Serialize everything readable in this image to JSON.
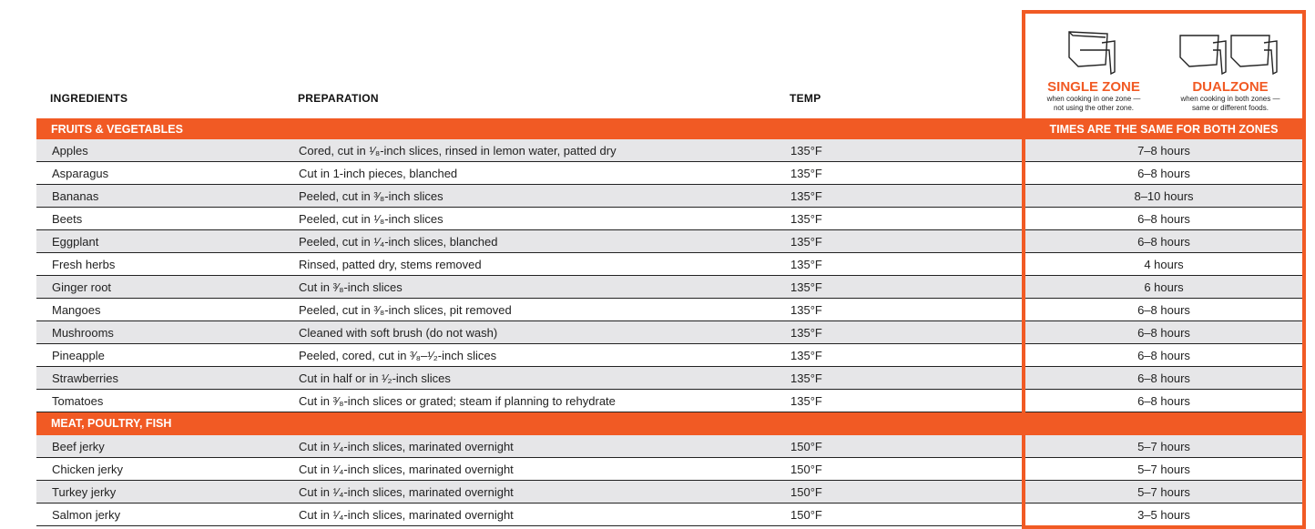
{
  "headers": {
    "ingredients": "INGREDIENTS",
    "preparation": "PREPARATION",
    "temp": "TEMP"
  },
  "zones": {
    "single": {
      "title": "SINGLE ZONE",
      "line1": "when cooking in one zone —",
      "line2": "not using the other zone.",
      "icon": "single-basket-icon"
    },
    "dual": {
      "title": "DUALZONE",
      "line1": "when cooking in both zones —",
      "line2": "same or different foods.",
      "icon": "dual-basket-icon"
    }
  },
  "accent": "#f15a24",
  "times_note": "TIMES ARE THE SAME FOR BOTH ZONES",
  "sections": [
    {
      "title": "FRUITS & VEGETABLES",
      "rows": [
        {
          "ingredient": "Apples",
          "prep": "Cored, cut in ¹⁄₈-inch slices, rinsed in lemon water, patted dry",
          "temp": "135°F",
          "time": "7–8 hours"
        },
        {
          "ingredient": "Asparagus",
          "prep": "Cut in 1-inch pieces, blanched",
          "temp": "135°F",
          "time": "6–8 hours"
        },
        {
          "ingredient": "Bananas",
          "prep": "Peeled, cut in ³⁄₈-inch slices",
          "temp": "135°F",
          "time": "8–10 hours"
        },
        {
          "ingredient": "Beets",
          "prep": "Peeled, cut in ¹⁄₈-inch slices",
          "temp": "135°F",
          "time": "6–8 hours"
        },
        {
          "ingredient": "Eggplant",
          "prep": "Peeled, cut in ¹⁄₄-inch slices, blanched",
          "temp": "135°F",
          "time": "6–8 hours"
        },
        {
          "ingredient": "Fresh herbs",
          "prep": "Rinsed, patted dry, stems removed",
          "temp": "135°F",
          "time": "4 hours"
        },
        {
          "ingredient": "Ginger root",
          "prep": "Cut in ³⁄₈-inch slices",
          "temp": "135°F",
          "time": "6 hours"
        },
        {
          "ingredient": "Mangoes",
          "prep": "Peeled, cut in ³⁄₈-inch slices, pit removed",
          "temp": "135°F",
          "time": "6–8 hours"
        },
        {
          "ingredient": "Mushrooms",
          "prep": "Cleaned with soft brush (do not wash)",
          "temp": "135°F",
          "time": "6–8 hours"
        },
        {
          "ingredient": "Pineapple",
          "prep": "Peeled, cored, cut in ³⁄₈–¹⁄₂-inch slices",
          "temp": "135°F",
          "time": "6–8 hours"
        },
        {
          "ingredient": "Strawberries",
          "prep": "Cut in half or in ¹⁄₂-inch slices",
          "temp": "135°F",
          "time": "6–8 hours"
        },
        {
          "ingredient": "Tomatoes",
          "prep": "Cut in ³⁄₈-inch slices or grated; steam if planning to rehydrate",
          "temp": "135°F",
          "time": "6–8 hours"
        }
      ]
    },
    {
      "title": "MEAT, POULTRY, FISH",
      "rows": [
        {
          "ingredient": "Beef jerky",
          "prep": "Cut in ¹⁄₄-inch slices, marinated overnight",
          "temp": "150°F",
          "time": "5–7 hours"
        },
        {
          "ingredient": "Chicken jerky",
          "prep": "Cut in ¹⁄₄-inch slices, marinated overnight",
          "temp": "150°F",
          "time": "5–7 hours"
        },
        {
          "ingredient": "Turkey jerky",
          "prep": "Cut in ¹⁄₄-inch slices, marinated overnight",
          "temp": "150°F",
          "time": "5–7 hours"
        },
        {
          "ingredient": "Salmon jerky",
          "prep": "Cut in ¹⁄₄-inch slices, marinated overnight",
          "temp": "150°F",
          "time": "3–5 hours"
        }
      ]
    }
  ]
}
